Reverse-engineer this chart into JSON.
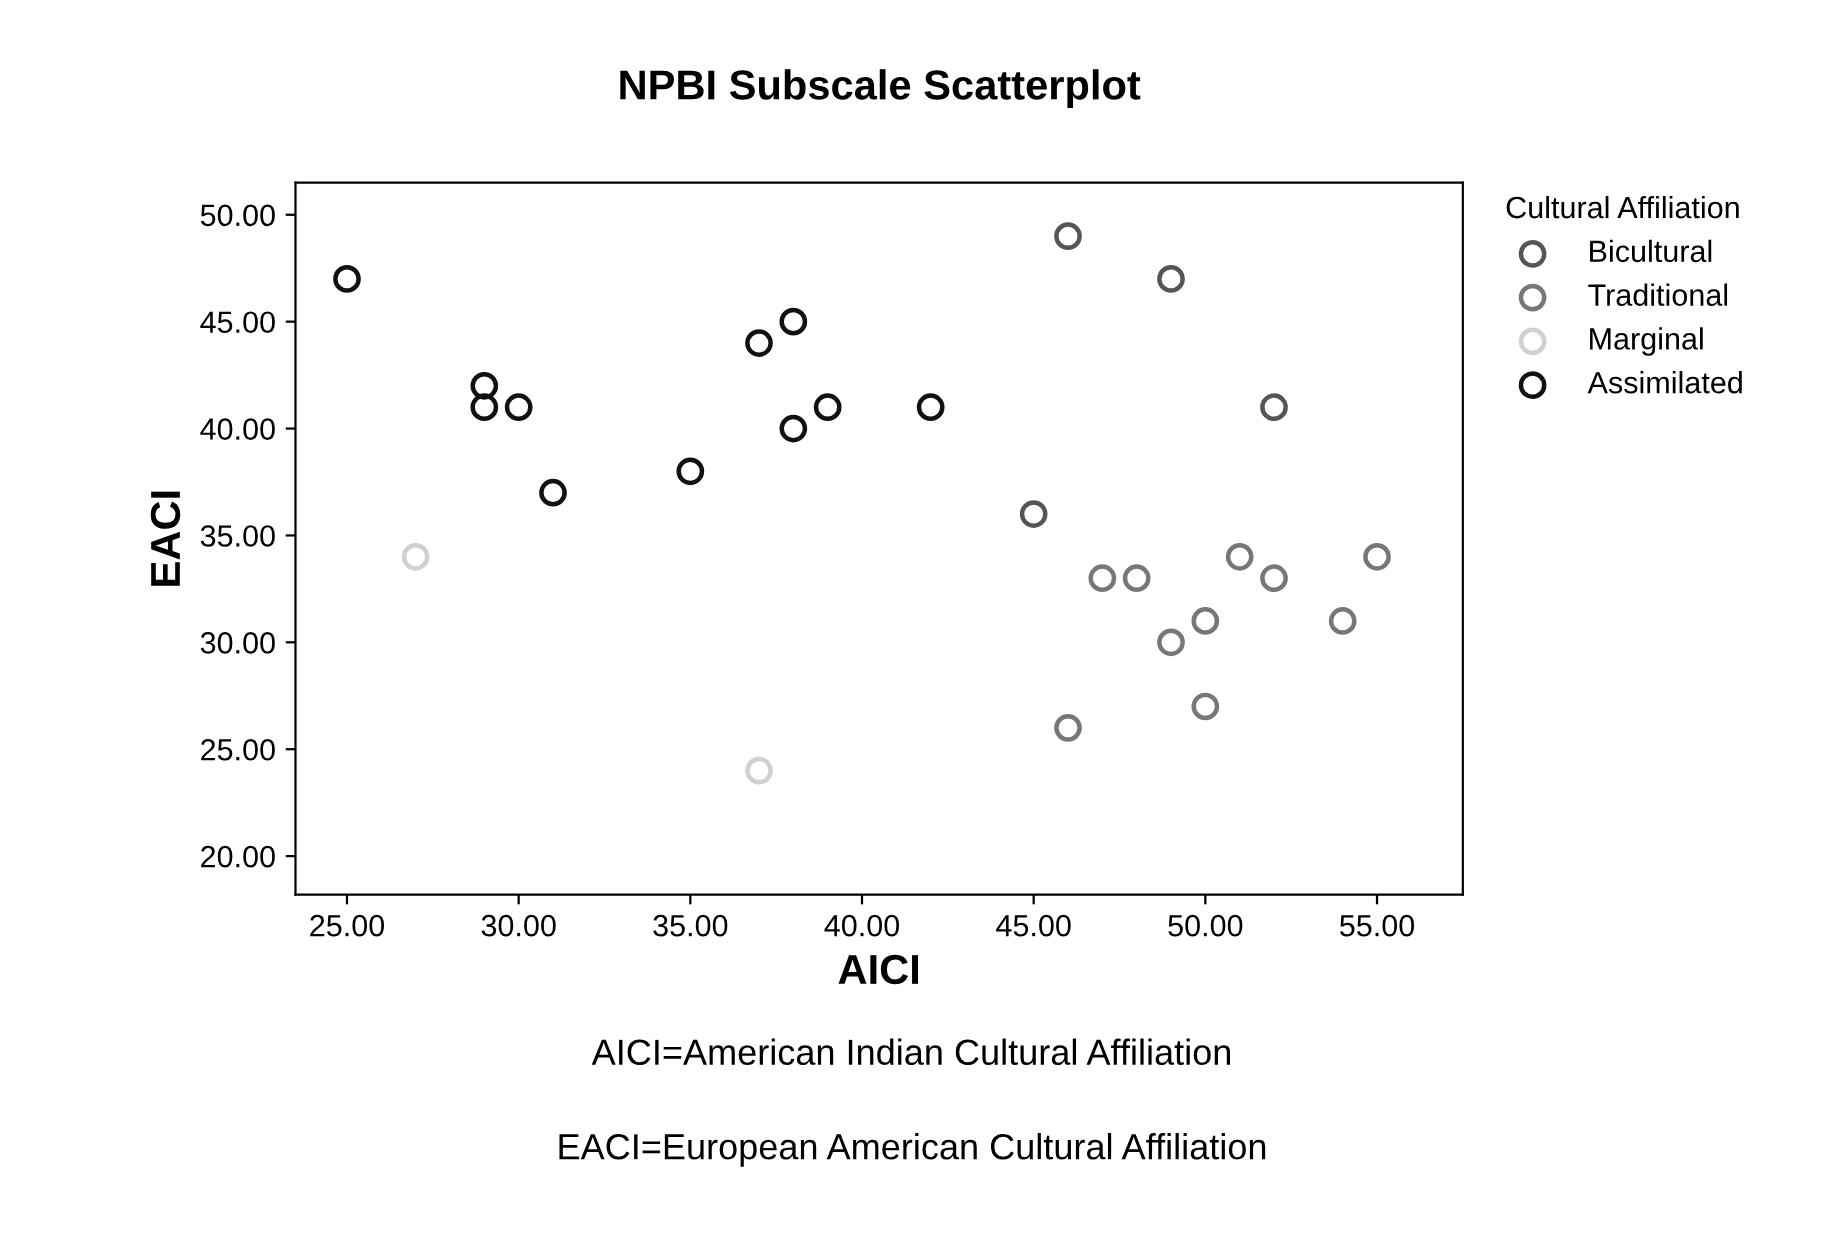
{
  "chart_data": {
    "type": "scatter",
    "title": "NPBI Subscale Scatterplot",
    "xlabel": "AICI",
    "ylabel": "EACI",
    "legend_title": "Cultural Affiliation",
    "series": [
      {
        "name": "Bicultural",
        "color": "#555555",
        "x": [
          46,
          49,
          52,
          45
        ],
        "values": [
          49,
          47,
          41,
          36
        ]
      },
      {
        "name": "Traditional",
        "color": "#777777",
        "x": [
          47,
          48,
          49,
          50,
          51,
          52,
          54,
          55,
          50,
          46
        ],
        "values": [
          33,
          33,
          30,
          31,
          34,
          33,
          31,
          34,
          27,
          26
        ]
      },
      {
        "name": "Marginal",
        "color": "#d0d0d0",
        "x": [
          27,
          37
        ],
        "values": [
          34,
          24
        ]
      },
      {
        "name": "Assimilated",
        "color": "#111111",
        "x": [
          25,
          29,
          29,
          30,
          31,
          35,
          37,
          38,
          38,
          39,
          42
        ],
        "values": [
          47,
          42,
          41,
          41,
          37,
          38,
          44,
          45,
          40,
          41,
          41
        ]
      }
    ],
    "xlim": [
      23.5,
      57.5
    ],
    "ylim": [
      18.2,
      51.5
    ],
    "xticks": [
      {
        "value": 25,
        "label": "25.00"
      },
      {
        "value": 30,
        "label": "30.00"
      },
      {
        "value": 35,
        "label": "35.00"
      },
      {
        "value": 40,
        "label": "40.00"
      },
      {
        "value": 45,
        "label": "45.00"
      },
      {
        "value": 50,
        "label": "50.00"
      },
      {
        "value": 55,
        "label": "55.00"
      }
    ],
    "yticks": [
      {
        "value": 20,
        "label": "20.00"
      },
      {
        "value": 25,
        "label": "25.00"
      },
      {
        "value": 30,
        "label": "30.00"
      },
      {
        "value": 35,
        "label": "35.00"
      },
      {
        "value": 40,
        "label": "40.00"
      },
      {
        "value": 45,
        "label": "45.00"
      },
      {
        "value": 50,
        "label": "50.00"
      }
    ],
    "marker": "circle",
    "grid": false,
    "legend": "right",
    "annotations": [
      "AICI=American Indian Cultural Affiliation",
      "EACI=European American Cultural Affiliation"
    ]
  }
}
